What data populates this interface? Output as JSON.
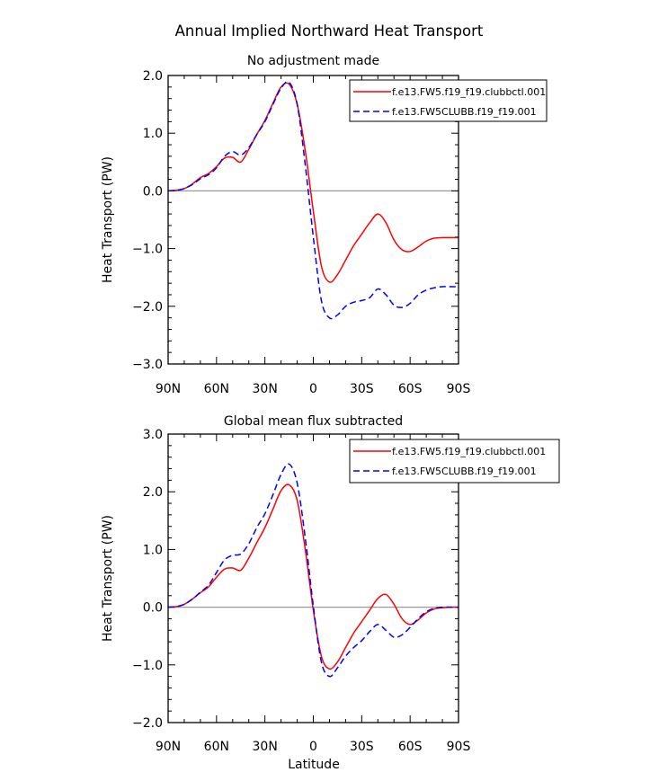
{
  "figure": {
    "title": "Annual Implied Northward Heat Transport",
    "xlabel": "Latitude"
  },
  "colors": {
    "ctl": "#ff0000",
    "exp": "#0000ff",
    "zero": "#9a9a9a"
  },
  "chart_data": [
    {
      "type": "line",
      "subtitle": "No adjustment made",
      "ylabel": "Heat Transport (PW)",
      "xlabel": "Latitude",
      "xlim": [
        90,
        -90
      ],
      "ylim": [
        -3.0,
        2.0
      ],
      "xticks": [
        90,
        60,
        30,
        0,
        -30,
        -60,
        -90
      ],
      "xtick_labels": [
        "90N",
        "60N",
        "30N",
        "0",
        "30S",
        "60S",
        "90S"
      ],
      "yticks": [
        2.0,
        1.0,
        0.0,
        -1.0,
        -2.0,
        -3.0
      ],
      "ytick_labels": [
        "2.0",
        "1.0",
        "0.0",
        "−1.0",
        "−2.0",
        "−3.0"
      ],
      "legend_position": "top-right",
      "series": [
        {
          "name": "f.e13.FW5.f19_f19.clubbctl.001",
          "style": "solid",
          "x": [
            90,
            85,
            80,
            75,
            70,
            65,
            60,
            55,
            50,
            45,
            40,
            35,
            30,
            25,
            20,
            15,
            10,
            5,
            0,
            -5,
            -10,
            -15,
            -20,
            -25,
            -30,
            -35,
            -40,
            -45,
            -50,
            -55,
            -60,
            -65,
            -70,
            -75,
            -80,
            -85,
            -90
          ],
          "values": [
            0.0,
            0.01,
            0.04,
            0.12,
            0.23,
            0.3,
            0.42,
            0.57,
            0.58,
            0.5,
            0.72,
            0.98,
            1.22,
            1.52,
            1.8,
            1.85,
            1.5,
            0.7,
            -0.35,
            -1.3,
            -1.58,
            -1.45,
            -1.2,
            -0.95,
            -0.75,
            -0.55,
            -0.4,
            -0.55,
            -0.85,
            -1.02,
            -1.05,
            -0.97,
            -0.87,
            -0.82,
            -0.81,
            -0.81,
            -0.81
          ]
        },
        {
          "name": "f.e13.FW5CLUBB.f19_f19.001",
          "style": "dashed",
          "x": [
            90,
            85,
            80,
            75,
            70,
            65,
            60,
            55,
            50,
            45,
            40,
            35,
            30,
            25,
            20,
            15,
            10,
            5,
            0,
            -5,
            -10,
            -15,
            -20,
            -25,
            -30,
            -35,
            -40,
            -45,
            -50,
            -55,
            -60,
            -65,
            -70,
            -75,
            -80,
            -85,
            -90
          ],
          "values": [
            0.0,
            0.01,
            0.04,
            0.11,
            0.21,
            0.28,
            0.4,
            0.6,
            0.68,
            0.62,
            0.75,
            0.98,
            1.2,
            1.5,
            1.78,
            1.88,
            1.5,
            0.45,
            -0.8,
            -1.9,
            -2.2,
            -2.15,
            -2.0,
            -1.93,
            -1.9,
            -1.85,
            -1.7,
            -1.8,
            -1.98,
            -2.02,
            -1.95,
            -1.8,
            -1.72,
            -1.68,
            -1.66,
            -1.66,
            -1.66
          ]
        }
      ]
    },
    {
      "type": "line",
      "subtitle": "Global mean flux subtracted",
      "ylabel": "Heat Transport (PW)",
      "xlabel": "Latitude",
      "xlim": [
        90,
        -90
      ],
      "ylim": [
        -2.0,
        3.0
      ],
      "xticks": [
        90,
        60,
        30,
        0,
        -30,
        -60,
        -90
      ],
      "xtick_labels": [
        "90N",
        "60N",
        "30N",
        "0",
        "30S",
        "60S",
        "90S"
      ],
      "yticks": [
        3.0,
        2.0,
        1.0,
        0.0,
        -1.0,
        -2.0
      ],
      "ytick_labels": [
        "3.0",
        "2.0",
        "1.0",
        "0.0",
        "−1.0",
        "−2.0"
      ],
      "legend_position": "top-right",
      "series": [
        {
          "name": "f.e13.FW5.f19_f19.clubbctl.001",
          "style": "solid",
          "x": [
            90,
            85,
            80,
            75,
            70,
            65,
            60,
            55,
            50,
            45,
            40,
            35,
            30,
            25,
            20,
            15,
            10,
            5,
            0,
            -5,
            -10,
            -15,
            -20,
            -25,
            -30,
            -35,
            -40,
            -45,
            -50,
            -55,
            -60,
            -65,
            -70,
            -75,
            -80,
            -85,
            -90
          ],
          "values": [
            0.0,
            0.01,
            0.05,
            0.14,
            0.25,
            0.35,
            0.52,
            0.66,
            0.68,
            0.64,
            0.85,
            1.12,
            1.38,
            1.7,
            2.02,
            2.12,
            1.85,
            1.0,
            -0.05,
            -0.85,
            -1.07,
            -0.95,
            -0.7,
            -0.45,
            -0.25,
            -0.05,
            0.15,
            0.22,
            0.05,
            -0.2,
            -0.3,
            -0.22,
            -0.1,
            -0.03,
            -0.01,
            0.0,
            0.0
          ]
        },
        {
          "name": "f.e13.FW5CLUBB.f19_f19.001",
          "style": "dashed",
          "x": [
            90,
            85,
            80,
            75,
            70,
            65,
            60,
            55,
            50,
            45,
            40,
            35,
            30,
            25,
            20,
            15,
            10,
            5,
            0,
            -5,
            -10,
            -15,
            -20,
            -25,
            -30,
            -35,
            -40,
            -45,
            -50,
            -55,
            -60,
            -65,
            -70,
            -75,
            -80,
            -85,
            -90
          ],
          "values": [
            0.0,
            0.01,
            0.05,
            0.14,
            0.26,
            0.38,
            0.6,
            0.82,
            0.9,
            0.92,
            1.1,
            1.38,
            1.62,
            1.95,
            2.3,
            2.48,
            2.15,
            1.2,
            0.02,
            -0.95,
            -1.2,
            -1.05,
            -0.85,
            -0.7,
            -0.58,
            -0.42,
            -0.3,
            -0.4,
            -0.52,
            -0.48,
            -0.35,
            -0.2,
            -0.08,
            -0.02,
            0.0,
            0.0,
            0.0
          ]
        }
      ]
    }
  ]
}
